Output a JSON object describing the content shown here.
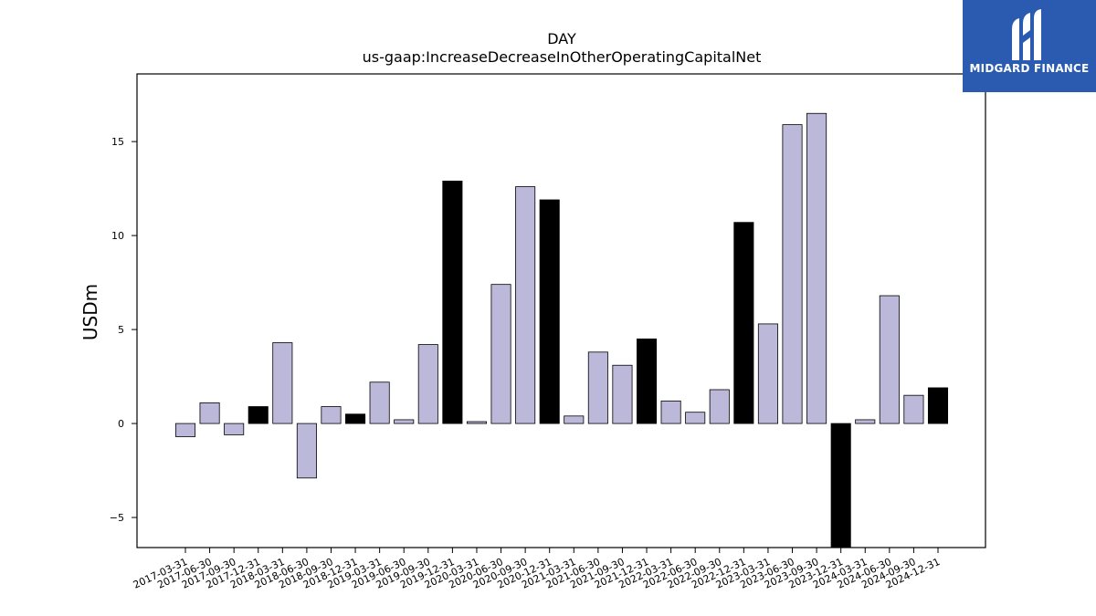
{
  "logo": {
    "brand_text": "MIDGARD FINANCE"
  },
  "chart_data": {
    "type": "bar",
    "title": "DAY",
    "subtitle": "us-gaap:IncreaseDecreaseInOtherOperatingCapitalNet",
    "ylabel": "USDm",
    "xlabel": "",
    "ylim": [
      -6.6,
      18.6
    ],
    "yticks": [
      -5,
      0,
      5,
      10,
      15
    ],
    "grid": false,
    "colors": {
      "normal": "#bcb8d9",
      "q4": "#000000",
      "edge": "#000000"
    },
    "categories": [
      "2017-03-31",
      "2017-06-30",
      "2017-09-30",
      "2017-12-31",
      "2018-03-31",
      "2018-06-30",
      "2018-09-30",
      "2018-12-31",
      "2019-03-31",
      "2019-06-30",
      "2019-09-30",
      "2019-12-31",
      "2020-03-31",
      "2020-06-30",
      "2020-09-30",
      "2020-12-31",
      "2021-03-31",
      "2021-06-30",
      "2021-09-30",
      "2021-12-31",
      "2022-03-31",
      "2022-06-30",
      "2022-09-30",
      "2022-12-31",
      "2023-03-31",
      "2023-06-30",
      "2023-09-30",
      "2023-12-31",
      "2024-03-31",
      "2024-06-30",
      "2024-09-30",
      "2024-12-31"
    ],
    "values": [
      -0.7,
      1.1,
      -0.6,
      0.9,
      4.3,
      -2.9,
      0.9,
      0.5,
      2.2,
      0.2,
      4.2,
      12.9,
      0.1,
      7.4,
      12.6,
      11.9,
      0.4,
      3.8,
      3.1,
      4.5,
      1.2,
      0.6,
      1.8,
      10.7,
      5.3,
      15.9,
      16.5,
      -6.6,
      0.2,
      6.8,
      1.5,
      1.9
    ]
  }
}
